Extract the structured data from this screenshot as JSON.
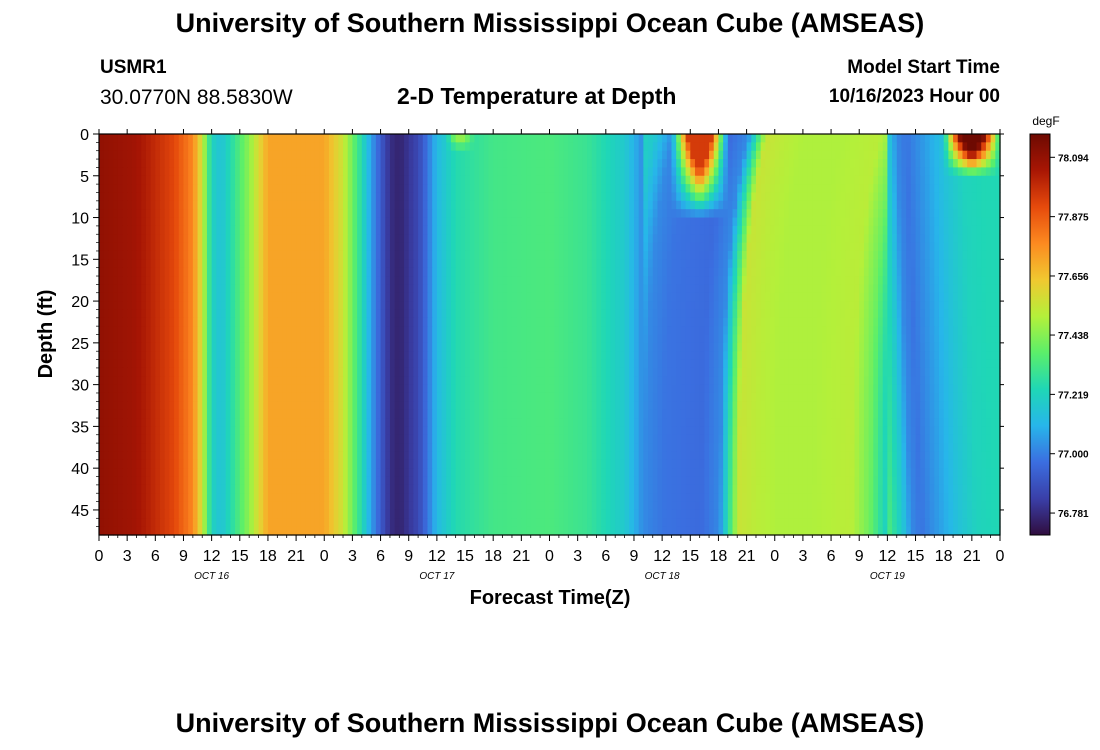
{
  "header": {
    "title": "University of Southern Mississippi Ocean Cube (AMSEAS)",
    "station_id": "USMR1",
    "coordinates": "30.0770N  88.5830W",
    "plot_title": "2-D Temperature at Depth",
    "model_start_label": "Model Start Time",
    "model_start_value": "10/16/2023 Hour 00"
  },
  "footer": {
    "title": "University of Southern Mississippi Ocean Cube (AMSEAS)"
  },
  "chart_data": {
    "type": "heatmap",
    "title": "2-D Temperature at Depth",
    "xlabel": "Forecast Time(Z)",
    "ylabel": "Depth (ft)",
    "x_unit": "forecast hour",
    "x_range": [
      0,
      96
    ],
    "x_tick_step_hours": 3,
    "x_tick_labels": [
      "0",
      "3",
      "6",
      "9",
      "12",
      "15",
      "18",
      "21",
      "0",
      "3",
      "6",
      "9",
      "12",
      "15",
      "18",
      "21",
      "0",
      "3",
      "6",
      "9",
      "12",
      "15",
      "18",
      "21",
      "0",
      "3",
      "6",
      "9",
      "12",
      "15",
      "18",
      "21",
      "0"
    ],
    "day_labels": [
      {
        "label": "OCT 16",
        "hour": 12
      },
      {
        "label": "OCT 17",
        "hour": 36
      },
      {
        "label": "OCT 18",
        "hour": 60
      },
      {
        "label": "OCT 19",
        "hour": 84
      }
    ],
    "y_range": [
      0,
      48
    ],
    "y_ticks": [
      "0",
      "5",
      "10",
      "15",
      "20",
      "25",
      "30",
      "35",
      "40",
      "45"
    ],
    "colorbar": {
      "unit": "degF",
      "min": 76.7,
      "max": 78.18,
      "tick_labels": [
        "78.094",
        "77.875",
        "77.656",
        "77.438",
        "77.219",
        "77.000",
        "76.781"
      ],
      "colors": [
        "#300d3e",
        "#3a3fa8",
        "#3b6ee0",
        "#27b6ea",
        "#1fd7b6",
        "#5bef6a",
        "#b4f03a",
        "#f0c830",
        "#fc8a20",
        "#e64a0c",
        "#a81604",
        "#6e0a02"
      ]
    },
    "temperature_profile_by_hour": {
      "hours": [
        0,
        4,
        8,
        10,
        11,
        12,
        13,
        14,
        16,
        18,
        20,
        24,
        26,
        28,
        29,
        30,
        31,
        32,
        34,
        35,
        36,
        38,
        42,
        48,
        52,
        56,
        58,
        60,
        64,
        66,
        68,
        70,
        72,
        76,
        80,
        82,
        84,
        85,
        86,
        88,
        90,
        92,
        94,
        96
      ],
      "values": [
        78.1,
        78.06,
        77.92,
        77.78,
        77.55,
        77.22,
        77.15,
        77.25,
        77.45,
        77.72,
        77.72,
        77.72,
        77.55,
        77.25,
        77.06,
        76.92,
        76.79,
        76.76,
        76.86,
        76.98,
        77.12,
        77.25,
        77.32,
        77.34,
        77.3,
        77.18,
        77.02,
        76.98,
        76.96,
        77.02,
        77.55,
        77.52,
        77.5,
        77.5,
        77.52,
        77.4,
        77.18,
        77.02,
        76.98,
        77.06,
        77.15,
        77.22,
        77.24,
        77.24
      ]
    },
    "surface_features": [
      {
        "description": "warm surface cell",
        "hour_range": [
          61,
          67
        ],
        "depth_range": [
          0,
          10
        ],
        "approx_max_degF": 77.95
      },
      {
        "description": "warm surface cell",
        "hour_range": [
          90,
          96
        ],
        "depth_range": [
          0,
          5
        ],
        "approx_max_degF": 78.18
      },
      {
        "description": "slightly warmer near surface",
        "hour_range": [
          37,
          40
        ],
        "depth_range": [
          0,
          2
        ],
        "approx_max_degF": 77.45
      }
    ]
  }
}
